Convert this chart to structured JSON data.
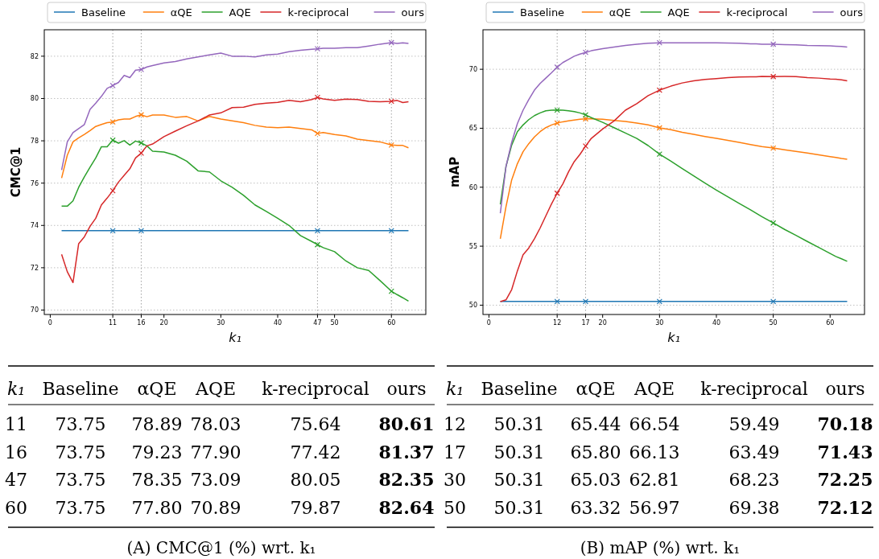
{
  "chart_data": [
    {
      "type": "line",
      "ylabel": "CMC@1",
      "xlabel": "k₁",
      "x": [
        2,
        3,
        4,
        5,
        6,
        7,
        8,
        9,
        10,
        11,
        12,
        13,
        14,
        15,
        16,
        17,
        18,
        20,
        22,
        24,
        26,
        28,
        30,
        32,
        34,
        36,
        38,
        40,
        42,
        44,
        46,
        47,
        48,
        50,
        52,
        54,
        56,
        58,
        60,
        61,
        62,
        63
      ],
      "xlim": [
        -1.05,
        66.05
      ],
      "xticks": [
        0,
        11,
        16,
        20,
        30,
        40,
        47,
        50,
        60
      ],
      "ylim": [
        69.79,
        83.25
      ],
      "yticks": [
        70,
        72,
        74,
        76,
        78,
        80,
        82
      ],
      "grid": "y",
      "legend": "top",
      "line_style": "solid",
      "ref_lines": [
        {
          "axis": "x",
          "value": 11,
          "color": "#999999",
          "line_style": "dotted"
        },
        {
          "axis": "x",
          "value": 16,
          "color": "#999999",
          "line_style": "dotted"
        },
        {
          "axis": "x",
          "value": 47,
          "color": "#999999",
          "line_style": "dotted"
        },
        {
          "axis": "x",
          "value": 60,
          "color": "#999999",
          "line_style": "dotted"
        }
      ],
      "series": [
        {
          "name": "Baseline",
          "color": "#1f77b4",
          "values": [
            73.75,
            73.75,
            73.75,
            73.75,
            73.75,
            73.75,
            73.75,
            73.75,
            73.75,
            73.75,
            73.75,
            73.75,
            73.75,
            73.75,
            73.75,
            73.75,
            73.75,
            73.75,
            73.75,
            73.75,
            73.75,
            73.75,
            73.75,
            73.75,
            73.75,
            73.75,
            73.75,
            73.75,
            73.75,
            73.75,
            73.75,
            73.75,
            73.75,
            73.75,
            73.75,
            73.75,
            73.75,
            73.75,
            73.75,
            73.75,
            73.75,
            73.75
          ]
        },
        {
          "name": "αQE",
          "color": "#ff7f0e",
          "values": [
            76.24,
            77.32,
            77.95,
            78.14,
            78.3,
            78.48,
            78.68,
            78.77,
            78.86,
            78.89,
            78.99,
            79.03,
            79.03,
            79.15,
            79.23,
            79.14,
            79.22,
            79.22,
            79.11,
            79.15,
            78.94,
            79.15,
            79.03,
            78.94,
            78.86,
            78.73,
            78.65,
            78.62,
            78.65,
            78.58,
            78.52,
            78.35,
            78.39,
            78.3,
            78.23,
            78.08,
            78.01,
            77.95,
            77.8,
            77.78,
            77.78,
            77.67
          ]
        },
        {
          "name": "AQE",
          "color": "#2ca02c",
          "values": [
            74.91,
            74.91,
            75.16,
            75.8,
            76.3,
            76.75,
            77.19,
            77.72,
            77.72,
            78.03,
            77.89,
            78.01,
            77.8,
            77.99,
            77.9,
            77.76,
            77.51,
            77.47,
            77.32,
            77.04,
            76.58,
            76.53,
            76.11,
            75.8,
            75.42,
            74.97,
            74.66,
            74.34,
            74.0,
            73.52,
            73.24,
            73.09,
            72.95,
            72.76,
            72.32,
            72.0,
            71.87,
            71.39,
            70.89,
            70.73,
            70.58,
            70.42
          ]
        },
        {
          "name": "k-reciprocal",
          "color": "#d62728",
          "values": [
            72.63,
            71.81,
            71.3,
            73.14,
            73.46,
            73.96,
            74.34,
            74.97,
            75.29,
            75.64,
            76.05,
            76.37,
            76.68,
            77.19,
            77.42,
            77.76,
            77.85,
            78.2,
            78.46,
            78.71,
            78.94,
            79.22,
            79.32,
            79.57,
            79.59,
            79.72,
            79.78,
            79.82,
            79.91,
            79.85,
            79.95,
            80.05,
            79.98,
            79.91,
            79.97,
            79.95,
            79.87,
            79.85,
            79.87,
            79.91,
            79.81,
            79.85
          ]
        },
        {
          "name": "ours",
          "color": "#9467bd",
          "values": [
            76.62,
            77.95,
            78.39,
            78.58,
            78.77,
            79.49,
            79.78,
            80.1,
            80.48,
            80.61,
            80.76,
            81.09,
            80.99,
            81.34,
            81.37,
            81.49,
            81.56,
            81.68,
            81.75,
            81.87,
            81.97,
            82.06,
            82.15,
            82.0,
            82.0,
            81.97,
            82.06,
            82.1,
            82.21,
            82.28,
            82.33,
            82.35,
            82.38,
            82.38,
            82.4,
            82.4,
            82.48,
            82.57,
            82.64,
            82.6,
            82.63,
            82.6
          ]
        },
        {
          "type": "scatter",
          "marker": "cross",
          "color": "#1f77b4",
          "x": [
            11,
            16,
            47,
            60
          ],
          "values": [
            73.75,
            73.75,
            73.75,
            73.75
          ]
        },
        {
          "type": "scatter",
          "marker": "cross",
          "color": "#ff7f0e",
          "x": [
            11,
            16,
            47,
            60
          ],
          "values": [
            78.89,
            79.23,
            78.35,
            77.8
          ]
        },
        {
          "type": "scatter",
          "marker": "cross",
          "color": "#2ca02c",
          "x": [
            11,
            16,
            47,
            60
          ],
          "values": [
            78.03,
            77.9,
            73.09,
            70.89
          ]
        },
        {
          "type": "scatter",
          "marker": "cross",
          "color": "#d62728",
          "x": [
            11,
            16,
            47,
            60
          ],
          "values": [
            75.64,
            77.42,
            80.05,
            79.87
          ]
        },
        {
          "type": "scatter",
          "marker": "cross",
          "color": "#9467bd",
          "x": [
            11,
            16,
            47,
            60
          ],
          "values": [
            80.61,
            81.37,
            82.35,
            82.64
          ]
        }
      ]
    },
    {
      "type": "line",
      "ylabel": "mAP",
      "xlabel": "k₁",
      "x": [
        2,
        3,
        4,
        5,
        6,
        7,
        8,
        9,
        10,
        11,
        12,
        13,
        14,
        15,
        16,
        17,
        18,
        20,
        22,
        24,
        26,
        28,
        30,
        32,
        34,
        36,
        38,
        40,
        42,
        44,
        46,
        47,
        48,
        50,
        52,
        54,
        56,
        58,
        60,
        61,
        62,
        63
      ],
      "xlim": [
        -1.05,
        66.05
      ],
      "xticks": [
        0,
        12,
        17,
        20,
        30,
        40,
        50,
        60
      ],
      "ylim": [
        49.21,
        73.35
      ],
      "yticks": [
        50,
        55,
        60,
        65,
        70
      ],
      "grid": "y",
      "legend": "top",
      "line_style": "solid",
      "ref_lines": [
        {
          "axis": "x",
          "value": 12,
          "color": "#999999",
          "line_style": "dotted"
        },
        {
          "axis": "x",
          "value": 17,
          "color": "#999999",
          "line_style": "dotted"
        },
        {
          "axis": "x",
          "value": 30,
          "color": "#999999",
          "line_style": "dotted"
        },
        {
          "axis": "x",
          "value": 50,
          "color": "#999999",
          "line_style": "dotted"
        }
      ],
      "series": [
        {
          "name": "Baseline",
          "color": "#1f77b4",
          "values": [
            50.31,
            50.31,
            50.31,
            50.31,
            50.31,
            50.31,
            50.31,
            50.31,
            50.31,
            50.31,
            50.31,
            50.31,
            50.31,
            50.31,
            50.31,
            50.31,
            50.31,
            50.31,
            50.31,
            50.31,
            50.31,
            50.31,
            50.31,
            50.31,
            50.31,
            50.31,
            50.31,
            50.31,
            50.31,
            50.31,
            50.31,
            50.31,
            50.31,
            50.31,
            50.31,
            50.31,
            50.31,
            50.31,
            50.31,
            50.31,
            50.31,
            50.31
          ]
        },
        {
          "name": "αQE",
          "color": "#ff7f0e",
          "values": [
            55.63,
            58.35,
            60.62,
            61.99,
            63.01,
            63.69,
            64.26,
            64.71,
            65.05,
            65.28,
            65.44,
            65.55,
            65.62,
            65.69,
            65.76,
            65.8,
            65.8,
            65.76,
            65.66,
            65.57,
            65.44,
            65.28,
            65.03,
            64.87,
            64.66,
            64.48,
            64.3,
            64.14,
            63.98,
            63.8,
            63.62,
            63.53,
            63.44,
            63.32,
            63.17,
            63.03,
            62.9,
            62.74,
            62.6,
            62.53,
            62.44,
            62.37
          ]
        },
        {
          "name": "AQE",
          "color": "#2ca02c",
          "values": [
            58.54,
            61.76,
            63.57,
            64.71,
            65.28,
            65.73,
            66.07,
            66.3,
            66.48,
            66.53,
            66.54,
            66.53,
            66.48,
            66.41,
            66.3,
            66.13,
            65.9,
            65.5,
            65.05,
            64.6,
            64.14,
            63.53,
            62.81,
            62.21,
            61.58,
            60.96,
            60.35,
            59.76,
            59.19,
            58.63,
            58.08,
            57.79,
            57.51,
            56.97,
            56.42,
            55.92,
            55.4,
            54.9,
            54.38,
            54.13,
            53.93,
            53.72
          ]
        },
        {
          "name": "k-reciprocal",
          "color": "#d62728",
          "values": [
            50.3,
            50.45,
            51.32,
            52.9,
            54.27,
            54.84,
            55.63,
            56.54,
            57.56,
            58.58,
            59.49,
            60.28,
            61.31,
            62.17,
            62.78,
            63.49,
            64.14,
            64.94,
            65.62,
            66.53,
            67.09,
            67.77,
            68.23,
            68.57,
            68.84,
            69.02,
            69.14,
            69.21,
            69.3,
            69.34,
            69.36,
            69.36,
            69.39,
            69.38,
            69.39,
            69.38,
            69.3,
            69.25,
            69.18,
            69.16,
            69.11,
            69.02
          ]
        },
        {
          "name": "ours",
          "color": "#9467bd",
          "values": [
            57.79,
            61.76,
            63.8,
            65.39,
            66.53,
            67.43,
            68.23,
            68.8,
            69.25,
            69.7,
            70.18,
            70.57,
            70.84,
            71.11,
            71.29,
            71.43,
            71.57,
            71.75,
            71.88,
            72.02,
            72.13,
            72.2,
            72.25,
            72.25,
            72.25,
            72.25,
            72.25,
            72.25,
            72.22,
            72.2,
            72.16,
            72.16,
            72.13,
            72.12,
            72.09,
            72.07,
            72.02,
            72.0,
            71.98,
            71.95,
            71.93,
            71.88
          ]
        },
        {
          "type": "scatter",
          "marker": "cross",
          "color": "#1f77b4",
          "x": [
            12,
            17,
            30,
            50
          ],
          "values": [
            50.31,
            50.31,
            50.31,
            50.31
          ]
        },
        {
          "type": "scatter",
          "marker": "cross",
          "color": "#ff7f0e",
          "x": [
            12,
            17,
            30,
            50
          ],
          "values": [
            65.44,
            65.8,
            65.03,
            63.32
          ]
        },
        {
          "type": "scatter",
          "marker": "cross",
          "color": "#2ca02c",
          "x": [
            12,
            17,
            30,
            50
          ],
          "values": [
            66.54,
            66.13,
            62.81,
            56.97
          ]
        },
        {
          "type": "scatter",
          "marker": "cross",
          "color": "#d62728",
          "x": [
            12,
            17,
            30,
            50
          ],
          "values": [
            59.49,
            63.49,
            68.23,
            69.38
          ]
        },
        {
          "type": "scatter",
          "marker": "cross",
          "color": "#9467bd",
          "x": [
            12,
            17,
            30,
            50
          ],
          "values": [
            70.18,
            71.43,
            72.25,
            72.12
          ]
        }
      ]
    },
    {
      "type": "other",
      "ylabel": "k₁",
      "annotations": [
        "(A) CMC@1 (%) wrt. k₁"
      ],
      "categories": [
        "Baseline",
        "αQE",
        "AQE",
        "k-reciprocal",
        "ours"
      ],
      "y_categories": [
        "11",
        "16",
        "47",
        "60"
      ],
      "cell_labels": [
        [
          "73.75",
          "78.89",
          "78.03",
          "75.64",
          "80.61"
        ],
        [
          "73.75",
          "79.23",
          "77.90",
          "77.42",
          "81.37"
        ],
        [
          "73.75",
          "78.35",
          "73.09",
          "80.05",
          "82.35"
        ],
        [
          "73.75",
          "77.80",
          "70.89",
          "79.87",
          "82.64"
        ]
      ]
    },
    {
      "type": "other",
      "ylabel": "k₁",
      "annotations": [
        "(B) mAP (%) wrt. k₁"
      ],
      "categories": [
        "Baseline",
        "αQE",
        "AQE",
        "k-reciprocal",
        "ours"
      ],
      "y_categories": [
        "12",
        "17",
        "30",
        "50"
      ],
      "cell_labels": [
        [
          "50.31",
          "65.44",
          "66.54",
          "59.49",
          "70.18"
        ],
        [
          "50.31",
          "65.80",
          "66.13",
          "63.49",
          "71.43"
        ],
        [
          "50.31",
          "65.03",
          "62.81",
          "68.23",
          "72.25"
        ],
        [
          "50.31",
          "63.32",
          "56.97",
          "69.38",
          "72.12"
        ]
      ]
    }
  ]
}
